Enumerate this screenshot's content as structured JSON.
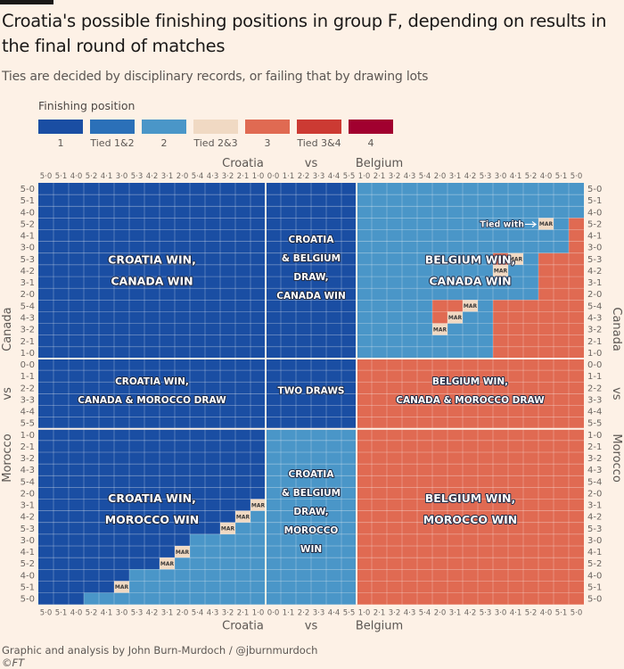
{
  "header": {
    "title": "Croatia's possible finishing positions in group F, depending on results in the final round of matches",
    "subtitle": "Ties are decided by disciplinary records, or failing that by drawing lots"
  },
  "legend": {
    "title": "Finishing position",
    "items": [
      {
        "code": "1",
        "label": "1",
        "color": "#1a4ea3"
      },
      {
        "code": "a",
        "label": "Tied 1&2",
        "color": "#2b70b8"
      },
      {
        "code": "2",
        "label": "2",
        "color": "#4a96c8"
      },
      {
        "code": "b",
        "label": "Tied 2&3",
        "color": "#f0d9c3"
      },
      {
        "code": "3",
        "label": "3",
        "color": "#e06a52"
      },
      {
        "code": "c",
        "label": "Tied 3&4",
        "color": "#cc3a33"
      },
      {
        "code": "4",
        "label": "4",
        "color": "#a1002f"
      }
    ]
  },
  "chart_data": {
    "type": "heatmap",
    "title": "Croatia's possible finishing positions in group F, depending on results in the final round of matches",
    "x_axis": {
      "title_left": "Croatia",
      "title_mid": "vs",
      "title_right": "Belgium",
      "groups": [
        "Croatia win",
        "Draw",
        "Belgium win"
      ],
      "ticks": [
        "5-0",
        "5-1",
        "4-0",
        "5-2",
        "4-1",
        "3-0",
        "5-3",
        "4-2",
        "3-1",
        "2-0",
        "5-4",
        "4-3",
        "3-2",
        "2-1",
        "1-0",
        "0-0",
        "1-1",
        "2-2",
        "3-3",
        "4-4",
        "5-5",
        "1-0",
        "2-1",
        "3-2",
        "4-3",
        "5-4",
        "2-0",
        "3-1",
        "4-2",
        "5-3",
        "3-0",
        "4-1",
        "5-2",
        "4-0",
        "5-1",
        "5-0"
      ]
    },
    "y_axis": {
      "title_top": "Canada",
      "title_mid": "vs",
      "title_bottom": "Morocco",
      "groups": [
        "Canada win",
        "Draw",
        "Morocco win"
      ],
      "ticks": [
        "5-0",
        "5-1",
        "4-0",
        "5-2",
        "4-1",
        "3-0",
        "5-3",
        "4-2",
        "3-1",
        "2-0",
        "5-4",
        "4-3",
        "3-2",
        "2-1",
        "1-0",
        "0-0",
        "1-1",
        "2-2",
        "3-3",
        "4-4",
        "5-5",
        "1-0",
        "2-1",
        "3-2",
        "4-3",
        "5-4",
        "2-0",
        "3-1",
        "4-2",
        "5-3",
        "3-0",
        "4-1",
        "5-2",
        "4-0",
        "5-1",
        "5-0"
      ]
    },
    "code_key": {
      "1": "1",
      "a": "Tied 1&2",
      "2": "2",
      "b": "Tied 2&3 (tied with MAR)",
      "3": "3",
      "c": "Tied 3&4",
      "4": "4"
    },
    "tie_label": "MAR",
    "rows": [
      "111111111111111111111222222222222222",
      "111111111111111111111222222222222222",
      "111111111111111111111222222222222222",
      "111111111111111111111222222222222b23",
      "111111111111111111111222222222222223",
      "111111111111111111111222222222222223",
      "1111111111111111111112222222223b2333",
      "111111111111111111111222222222b22333",
      "111111111111111111111222222222222333",
      "111111111111111111111222222222222333",
      "1111111111111111111112222233b2333333",
      "111111111111111111111222223b22333333",
      "11111111111111111111122222b222333333",
      "111111111111111111111222222222333333",
      "111111111111111111111222222222333333",
      "111111111111111111111333333333333333",
      "111111111111111111111333333333333333",
      "111111111111111111111333333333333333",
      "111111111111111111111333333333333333",
      "111111111111111111111333333333333333",
      "111111111111111111111333333333333333",
      "111111111111111222222333333333333333",
      "111111111111111222222333333333333333",
      "111111111111111222222333333333333333",
      "111111111111111222222333333333333333",
      "111111111111111222222333333333333333",
      "111111111111111222222333333333333333",
      "11111111111111b222222333333333333333",
      "1111111111111b2222222333333333333333",
      "111111111111b22222222333333333333333",
      "111111111122222222222333333333333333",
      "111111111b22222222222333333333333333",
      "11111111b222222222222333333333333333",
      "111111222222222222222333333333333333",
      "11111b222222222222222333333333333333",
      "111222222222222222222333333333333333"
    ],
    "annotations": {
      "tied_with": "Tied with →",
      "quadrants": {
        "cw_canw": [
          "CROATIA WIN,",
          "CANADA WIN"
        ],
        "dr_canw": [
          "CROATIA",
          "& BELGIUM",
          "DRAW,",
          "CANADA WIN"
        ],
        "bw_canw": [
          "BELGIUM WIN,",
          "CANADA WIN"
        ],
        "cw_dr": [
          "CROATIA WIN,",
          "CANADA & MOROCCO DRAW"
        ],
        "dr_dr": [
          "TWO DRAWS"
        ],
        "bw_dr": [
          "BELGIUM WIN,",
          "CANADA & MOROCCO DRAW"
        ],
        "cw_morw": [
          "CROATIA WIN,",
          "MOROCCO WIN"
        ],
        "dr_morw": [
          "CROATIA",
          "& BELGIUM",
          "DRAW,",
          "MOROCCO",
          "WIN"
        ],
        "bw_morw": [
          "BELGIUM WIN,",
          "MOROCCO WIN"
        ]
      }
    }
  },
  "footer": {
    "credit": "Graphic and analysis by John Burn-Murdoch / @jburnmurdoch",
    "copyright": "©FT"
  }
}
